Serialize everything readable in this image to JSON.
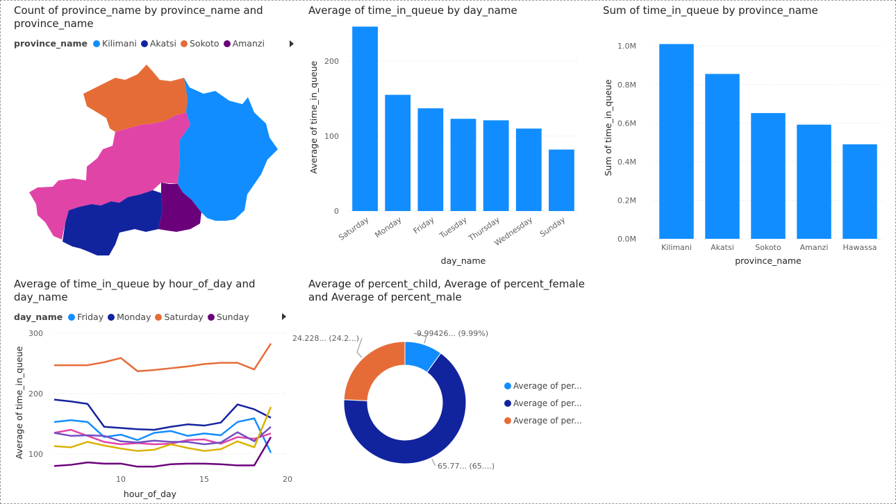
{
  "visuals": {
    "map": {
      "title_line1": "Count of province_name by province_name and",
      "title_line2": "province_name",
      "legend_title": "province_name",
      "legend": [
        {
          "name": "Kilimani",
          "color": "#118DFF"
        },
        {
          "name": "Akatsi",
          "color": "#12239E"
        },
        {
          "name": "Sokoto",
          "color": "#E66C37"
        },
        {
          "name": "Amanzi",
          "color": "#6B007B"
        }
      ],
      "regions": [
        {
          "name": "Sokoto",
          "color": "#E66C37"
        },
        {
          "name": "Kilimani",
          "color": "#118DFF"
        },
        {
          "name": "Hawassa",
          "color": "#E044A7"
        },
        {
          "name": "Akatsi",
          "color": "#12239E"
        },
        {
          "name": "Amanzi",
          "color": "#6B007B"
        }
      ]
    },
    "bar_day": {
      "title": "Average of time_in_queue by day_name"
    },
    "bar_prov": {
      "title": "Sum of time_in_queue by province_name"
    },
    "line_hour": {
      "title_line1": "Average of time_in_queue by hour_of_day and",
      "title_line2": "day_name",
      "legend_title": "day_name",
      "legend": [
        {
          "name": "Friday",
          "color": "#118DFF"
        },
        {
          "name": "Monday",
          "color": "#12239E"
        },
        {
          "name": "Saturday",
          "color": "#E66C37"
        },
        {
          "name": "Sunday",
          "color": "#6B007B"
        }
      ]
    },
    "donut": {
      "title_line1": "Average of percent_child, Average of percent_female",
      "title_line2": "and Average of percent_male",
      "legend": [
        {
          "name": "Average of per...",
          "color": "#118DFF"
        },
        {
          "name": "Average of per...",
          "color": "#12239E"
        },
        {
          "name": "Average of per...",
          "color": "#E66C37"
        }
      ],
      "labels": [
        {
          "text": "9.99426... (9.99%)"
        },
        {
          "text": "65.77... (65....)"
        },
        {
          "text": "24.228... (24.2...)"
        }
      ]
    }
  },
  "chart_data": [
    {
      "type": "bar",
      "title": "Average of time_in_queue by day_name",
      "categories": [
        "Saturday",
        "Monday",
        "Friday",
        "Tuesday",
        "Thursday",
        "Wednesday",
        "Sunday"
      ],
      "values": [
        246,
        155,
        137,
        123,
        121,
        110,
        82
      ],
      "xlabel": "day_name",
      "ylabel": "Average of time_in_queue",
      "yticks": [
        0,
        100,
        200
      ],
      "yticks_labels": [
        "0",
        "100",
        "200"
      ],
      "ylim": [
        0,
        250
      ],
      "color": "#118DFF",
      "grid": true
    },
    {
      "type": "bar",
      "title": "Sum of time_in_queue by province_name",
      "categories": [
        "Kilimani",
        "Akatsi",
        "Sokoto",
        "Amanzi",
        "Hawassa"
      ],
      "values": [
        1010000,
        855000,
        652000,
        592000,
        490000
      ],
      "xlabel": "province_name",
      "ylabel": "Sum of time_in_queue",
      "yticks": [
        0,
        200000,
        400000,
        600000,
        800000,
        1000000
      ],
      "yticks_labels": [
        "0.0M",
        "0.2M",
        "0.4M",
        "0.6M",
        "0.8M",
        "1.0M"
      ],
      "ylim": [
        0,
        1080000
      ],
      "color": "#118DFF",
      "grid": true
    },
    {
      "type": "line",
      "title": "Average of time_in_queue by hour_of_day and day_name",
      "x": [
        6,
        7,
        8,
        9,
        10,
        11,
        12,
        13,
        14,
        15,
        16,
        17,
        18,
        19
      ],
      "xlabel": "hour_of_day",
      "ylabel": "Average of time_in_queue",
      "xticks": [
        10,
        15,
        20
      ],
      "yticks": [
        100,
        200,
        300
      ],
      "xlim": [
        6,
        20
      ],
      "ylim": [
        70,
        300
      ],
      "grid": true,
      "series": [
        {
          "name": "Saturday",
          "color": "#E66C37",
          "values": [
            247,
            247,
            247,
            252,
            259,
            237,
            239,
            242,
            245,
            249,
            251,
            251,
            240,
            283
          ]
        },
        {
          "name": "Monday",
          "color": "#12239E",
          "values": [
            190,
            187,
            183,
            145,
            143,
            141,
            140,
            145,
            149,
            147,
            152,
            182,
            174,
            160
          ]
        },
        {
          "name": "Friday",
          "color": "#118DFF",
          "values": [
            153,
            156,
            153,
            128,
            132,
            123,
            135,
            138,
            130,
            134,
            131,
            153,
            159,
            102
          ]
        },
        {
          "name": "",
          "color": "#E044A7",
          "values": [
            135,
            140,
            130,
            120,
            116,
            118,
            116,
            117,
            123,
            124,
            117,
            128,
            125,
            134
          ]
        },
        {
          "name": "",
          "color": "#744EC2",
          "values": [
            135,
            130,
            131,
            130,
            121,
            119,
            122,
            120,
            120,
            116,
            119,
            136,
            121,
            145
          ]
        },
        {
          "name": "",
          "color": "#D9B300",
          "values": [
            113,
            111,
            120,
            114,
            109,
            105,
            107,
            116,
            110,
            105,
            108,
            121,
            111,
            178
          ]
        },
        {
          "name": "Sunday",
          "color": "#6B007B",
          "values": [
            80,
            82,
            86,
            84,
            84,
            79,
            79,
            83,
            84,
            84,
            83,
            81,
            81,
            128
          ]
        }
      ]
    },
    {
      "type": "pie",
      "title": "Average of percent_child, Average of percent_female and Average of percent_male",
      "donut": true,
      "slices": [
        {
          "color": "#118DFF",
          "value": 9.99
        },
        {
          "color": "#12239E",
          "value": 65.77
        },
        {
          "color": "#E66C37",
          "value": 24.23
        }
      ]
    }
  ]
}
